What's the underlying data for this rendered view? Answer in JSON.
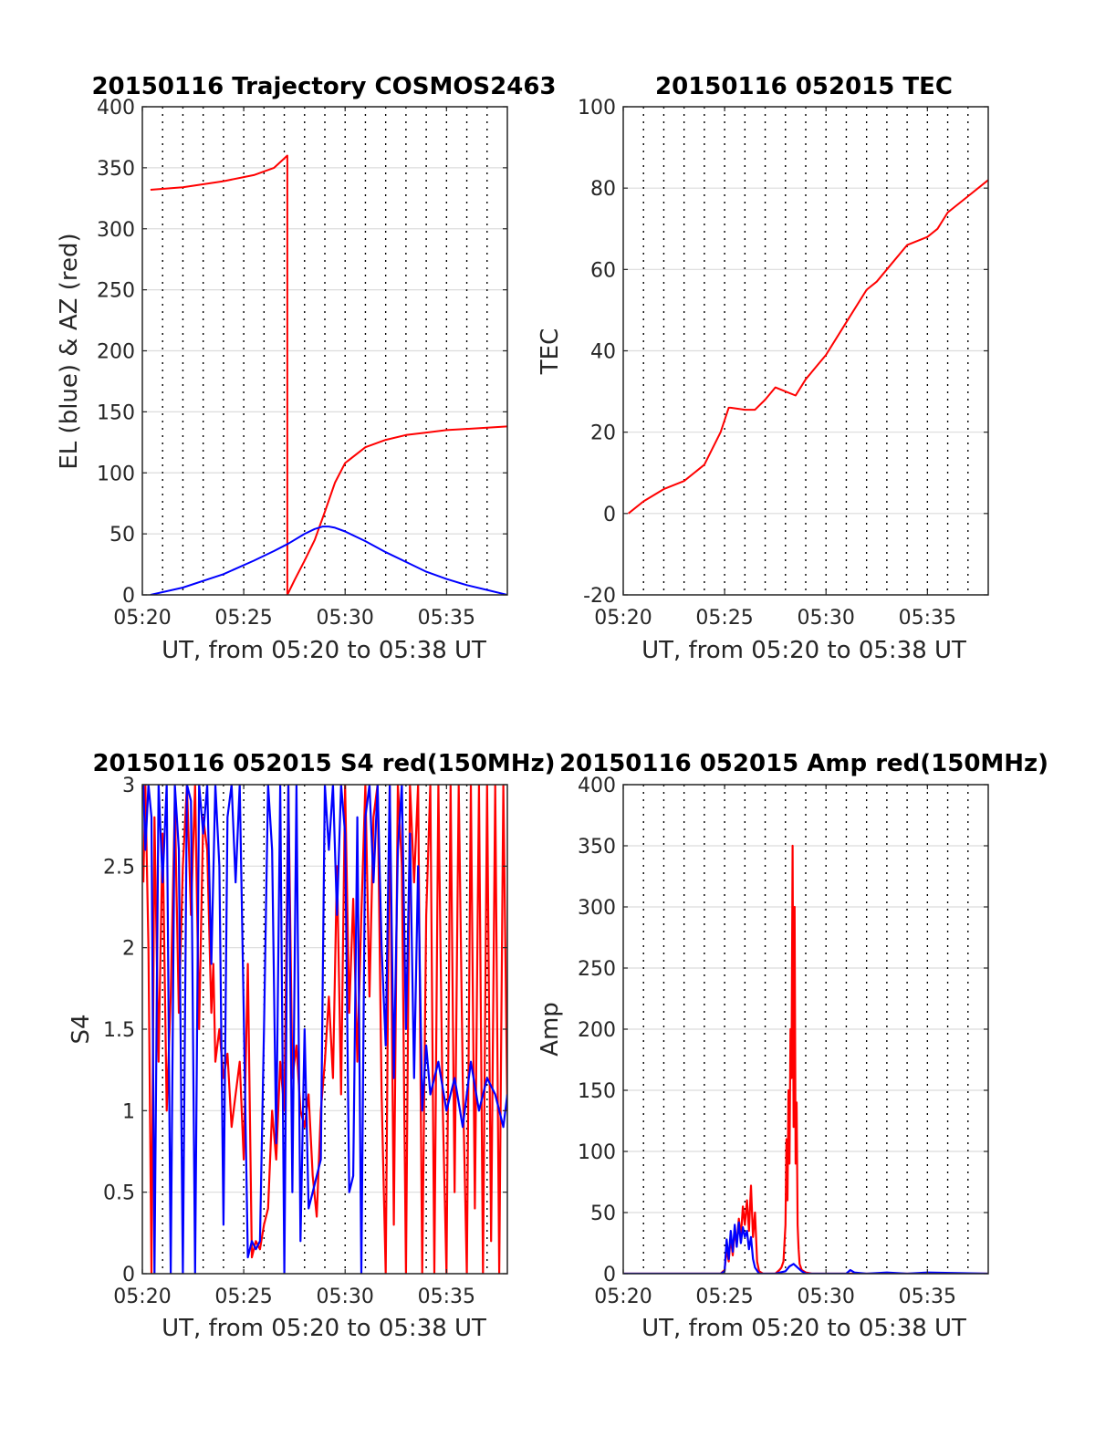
{
  "colors": {
    "red": "#ff0000",
    "blue": "#0000ff"
  },
  "chart_data": [
    {
      "id": "trajectory",
      "type": "line",
      "title": "20150116 Trajectory COSMOS2463",
      "xlabel": "UT, from 05:20 to 05:38 UT",
      "ylabel": "EL (blue) & AZ (red)",
      "xlim": [
        0,
        18
      ],
      "ylim": [
        0,
        400
      ],
      "xticks": [
        0,
        5,
        10,
        15
      ],
      "xticklabels": [
        "05:20",
        "05:25",
        "05:30",
        "05:35"
      ],
      "yticks": [
        0,
        50,
        100,
        150,
        200,
        250,
        300,
        350,
        400
      ],
      "yticklabels": [
        "0",
        "50",
        "100",
        "150",
        "200",
        "250",
        "300",
        "350",
        "400"
      ],
      "vgrid_minutes": [
        1,
        2,
        3,
        4,
        5,
        6,
        7,
        8,
        9,
        10,
        11,
        12,
        13,
        14,
        15,
        16,
        17
      ],
      "series": [
        {
          "color": "red",
          "x": [
            0.4,
            2,
            4,
            5.5,
            6.5,
            7.15,
            7.15,
            7.5,
            8,
            8.5,
            9,
            9.5,
            10,
            11,
            12,
            13,
            14,
            15,
            16,
            17,
            18
          ],
          "y": [
            332,
            334,
            339,
            344,
            350,
            360,
            0,
            12,
            28,
            45,
            68,
            92,
            108,
            121,
            127,
            131,
            133,
            135,
            136,
            137,
            138
          ]
        },
        {
          "color": "blue",
          "x": [
            0.4,
            2,
            4,
            5.5,
            6.5,
            7.2,
            8,
            8.5,
            8.9,
            9.2,
            9.5,
            10,
            11,
            12,
            13,
            14,
            15,
            16,
            17,
            18
          ],
          "y": [
            0,
            6,
            17,
            28,
            36,
            42,
            50,
            54,
            56,
            56,
            55,
            52,
            44,
            35,
            27,
            19,
            13,
            8,
            4,
            0
          ]
        }
      ]
    },
    {
      "id": "tec",
      "type": "line",
      "title": "20150116 052015 TEC",
      "xlabel": "UT, from 05:20 to 05:38 UT",
      "ylabel": "TEC",
      "xlim": [
        0,
        18
      ],
      "ylim": [
        -20,
        100
      ],
      "xticks": [
        0,
        5,
        10,
        15
      ],
      "xticklabels": [
        "05:20",
        "05:25",
        "05:30",
        "05:35"
      ],
      "yticks": [
        -20,
        0,
        20,
        40,
        60,
        80,
        100
      ],
      "yticklabels": [
        "-20",
        "0",
        "20",
        "40",
        "60",
        "80",
        "100"
      ],
      "vgrid_minutes": [
        1,
        2,
        3,
        4,
        5,
        6,
        7,
        8,
        9,
        10,
        11,
        12,
        13,
        14,
        15,
        16,
        17
      ],
      "series": [
        {
          "color": "red",
          "x": [
            0.25,
            1,
            2,
            3,
            4,
            4.8,
            5.2,
            5.3,
            6,
            6.5,
            7,
            7.5,
            8,
            8.5,
            9,
            10,
            11,
            12,
            12.5,
            13,
            14,
            15,
            15.5,
            16,
            17,
            18
          ],
          "y": [
            0,
            3,
            6,
            8,
            12,
            20,
            26,
            26,
            25.5,
            25.5,
            28,
            31,
            30,
            29,
            33,
            39,
            47,
            55,
            57,
            60,
            66,
            68,
            70,
            74,
            78,
            82
          ]
        }
      ]
    },
    {
      "id": "s4",
      "type": "line",
      "title": "20150116 052015 S4 red(150MHz)",
      "xlabel": "UT, from 05:20 to 05:38 UT",
      "ylabel": "S4",
      "xlim": [
        0,
        18
      ],
      "ylim": [
        0,
        3
      ],
      "xticks": [
        0,
        5,
        10,
        15
      ],
      "xticklabels": [
        "05:20",
        "05:25",
        "05:30",
        "05:35"
      ],
      "yticks": [
        0,
        0.5,
        1,
        1.5,
        2,
        2.5,
        3
      ],
      "yticklabels": [
        "0",
        "0.5",
        "1",
        "1.5",
        "2",
        "2.5",
        "3"
      ],
      "vgrid_minutes": [
        1,
        2,
        3,
        4,
        5,
        6,
        7,
        8,
        9,
        10,
        11,
        12,
        13,
        14,
        15,
        16,
        17
      ],
      "series": [
        {
          "color": "red",
          "x": [
            0.05,
            0.15,
            0.3,
            0.45,
            0.6,
            0.8,
            1.0,
            1.2,
            1.4,
            1.6,
            1.8,
            2.0,
            2.2,
            2.4,
            2.6,
            2.8,
            3.0,
            3.2,
            3.4,
            3.5,
            3.6,
            3.8,
            4.0,
            4.2,
            4.4,
            4.6,
            4.8,
            5.0,
            5.2,
            5.4,
            5.6,
            5.8,
            6.0,
            6.2,
            6.4,
            6.6,
            6.8,
            7.0,
            7.2,
            7.4,
            7.6,
            7.8,
            8.0,
            8.2,
            8.4,
            8.6,
            8.8,
            9.0,
            9.2,
            9.4,
            9.6,
            9.8,
            10.0,
            10.2,
            10.4,
            10.6,
            10.8,
            11.0,
            11.2,
            11.4,
            11.6,
            11.8,
            12.0,
            12.2,
            12.4,
            12.6,
            12.8,
            13.0,
            13.2,
            13.4,
            13.6,
            13.8,
            14.0,
            14.2,
            14.4,
            14.6,
            14.8,
            15.0,
            15.2,
            15.4,
            15.6,
            15.8,
            16.0,
            16.2,
            16.4,
            16.6,
            16.8,
            17.0,
            17.2,
            17.4,
            17.6,
            17.8,
            18.0
          ],
          "y": [
            2.4,
            3.0,
            2.0,
            0,
            2.8,
            1.3,
            2.7,
            1.0,
            1.7,
            2.9,
            1.6,
            2.5,
            3.0,
            2.2,
            3.0,
            1.5,
            2.8,
            2.6,
            1.6,
            1.9,
            1.3,
            1.5,
            1.2,
            1.35,
            0.9,
            1.1,
            1.3,
            0.7,
            1.9,
            0.1,
            0.2,
            0.15,
            0.3,
            0.4,
            1.0,
            0.7,
            1.3,
            1.0,
            3.0,
            1.2,
            1.4,
            1.0,
            0.9,
            1.1,
            0.6,
            0.35,
            1.0,
            1.3,
            1.7,
            1.2,
            2.5,
            1.1,
            3.0,
            1.6,
            2.3,
            1.3,
            2.2,
            3.0,
            1.7,
            2.8,
            3.0,
            1.1,
            0,
            3.0,
            0.3,
            3.0,
            2.5,
            0,
            3.0,
            2.4,
            3.0,
            0,
            2.2,
            3.0,
            0,
            3.0,
            1.1,
            0,
            3.0,
            0.5,
            3.0,
            1.2,
            0,
            3.0,
            0.4,
            3.0,
            0,
            3.0,
            0.2,
            3.0,
            0,
            3.0,
            1.0
          ]
        },
        {
          "color": "blue",
          "x": [
            0.05,
            0.15,
            0.3,
            0.45,
            0.6,
            0.8,
            1.0,
            1.2,
            1.4,
            1.6,
            1.8,
            2.0,
            2.2,
            2.4,
            2.6,
            2.8,
            3.0,
            3.2,
            3.4,
            3.6,
            3.8,
            4.0,
            4.2,
            4.4,
            4.6,
            4.8,
            5.0,
            5.2,
            5.4,
            5.6,
            5.8,
            6.0,
            6.2,
            6.4,
            6.6,
            6.8,
            7.0,
            7.2,
            7.4,
            7.6,
            7.8,
            8.0,
            8.2,
            8.4,
            8.6,
            8.8,
            9.0,
            9.2,
            9.4,
            9.6,
            9.8,
            10.0,
            10.2,
            10.4,
            10.6,
            10.8,
            11.0,
            11.2,
            11.4,
            11.6,
            11.8,
            12.0,
            12.2,
            12.4,
            12.6,
            12.8,
            13.0,
            13.2,
            13.4,
            13.6,
            13.8,
            14.0,
            14.2,
            14.6,
            15.0,
            15.4,
            15.8,
            16.2,
            16.6,
            17.0,
            17.4,
            17.8,
            18.0
          ],
          "y": [
            3.0,
            2.6,
            3.0,
            2.8,
            0,
            3.0,
            2.4,
            3.0,
            0,
            3.0,
            2.6,
            0,
            3.0,
            2.9,
            0,
            3.0,
            2.7,
            3.0,
            1.9,
            3.0,
            2.5,
            0.3,
            2.8,
            3.0,
            2.4,
            3.0,
            1.6,
            0.1,
            0.2,
            0.15,
            0.2,
            1.5,
            3.0,
            2.6,
            0.8,
            3.0,
            0,
            3.0,
            0.5,
            3.0,
            0.2,
            1.5,
            0.4,
            0.5,
            0.6,
            0.7,
            3.0,
            2.6,
            3.0,
            2.2,
            3.0,
            2.7,
            0.5,
            0.6,
            2.8,
            0,
            2.8,
            3.0,
            2.4,
            3.0,
            2.0,
            1.4,
            3.0,
            1.2,
            2.6,
            3.0,
            1.5,
            2.7,
            1.2,
            2.5,
            1.0,
            1.4,
            1.1,
            1.3,
            1.0,
            1.2,
            0.9,
            1.3,
            1.0,
            1.2,
            1.1,
            0.9,
            1.1
          ]
        }
      ]
    },
    {
      "id": "amp",
      "type": "line",
      "title": "20150116 052015 Amp red(150MHz)",
      "xlabel": "UT, from 05:20 to 05:38 UT",
      "ylabel": "Amp",
      "xlim": [
        0,
        18
      ],
      "ylim": [
        0,
        400
      ],
      "xticks": [
        0,
        5,
        10,
        15
      ],
      "xticklabels": [
        "05:20",
        "05:25",
        "05:30",
        "05:35"
      ],
      "yticks": [
        0,
        50,
        100,
        150,
        200,
        250,
        300,
        350,
        400
      ],
      "yticklabels": [
        "0",
        "50",
        "100",
        "150",
        "200",
        "250",
        "300",
        "350",
        "400"
      ],
      "vgrid_minutes": [
        1,
        2,
        3,
        4,
        5,
        6,
        7,
        8,
        9,
        10,
        11,
        12,
        13,
        14,
        15,
        16,
        17
      ],
      "series": [
        {
          "color": "red",
          "x": [
            0,
            4.8,
            5.0,
            5.1,
            5.2,
            5.3,
            5.4,
            5.5,
            5.6,
            5.7,
            5.8,
            5.9,
            6.0,
            6.1,
            6.2,
            6.3,
            6.4,
            6.5,
            6.6,
            6.7,
            6.9,
            7.2,
            7.5,
            7.7,
            7.8,
            7.9,
            8.0,
            8.05,
            8.1,
            8.15,
            8.2,
            8.25,
            8.3,
            8.35,
            8.4,
            8.45,
            8.5,
            8.55,
            8.6,
            8.65,
            8.7,
            8.8,
            9.0,
            9.3,
            18
          ],
          "y": [
            0,
            0,
            3,
            20,
            10,
            30,
            15,
            35,
            25,
            45,
            30,
            55,
            40,
            60,
            35,
            72,
            30,
            50,
            10,
            2,
            0,
            0,
            0,
            3,
            5,
            10,
            40,
            110,
            60,
            150,
            90,
            200,
            160,
            350,
            120,
            300,
            90,
            140,
            40,
            20,
            8,
            3,
            1,
            0,
            0
          ]
        },
        {
          "color": "blue",
          "x": [
            0,
            4.8,
            5.0,
            5.1,
            5.2,
            5.3,
            5.4,
            5.5,
            5.6,
            5.7,
            5.8,
            5.9,
            6.0,
            6.1,
            6.2,
            6.3,
            6.4,
            6.5,
            6.7,
            7.5,
            8.0,
            8.2,
            8.4,
            8.6,
            8.8,
            9.0,
            11.0,
            11.2,
            11.4,
            12.0,
            13.0,
            14.0,
            15.0,
            18
          ],
          "y": [
            0,
            0,
            2,
            28,
            12,
            35,
            18,
            40,
            22,
            42,
            25,
            38,
            30,
            35,
            20,
            30,
            12,
            5,
            0,
            0,
            2,
            6,
            8,
            5,
            2,
            0,
            0,
            3,
            1,
            0,
            1,
            0,
            1,
            0
          ]
        }
      ]
    }
  ]
}
